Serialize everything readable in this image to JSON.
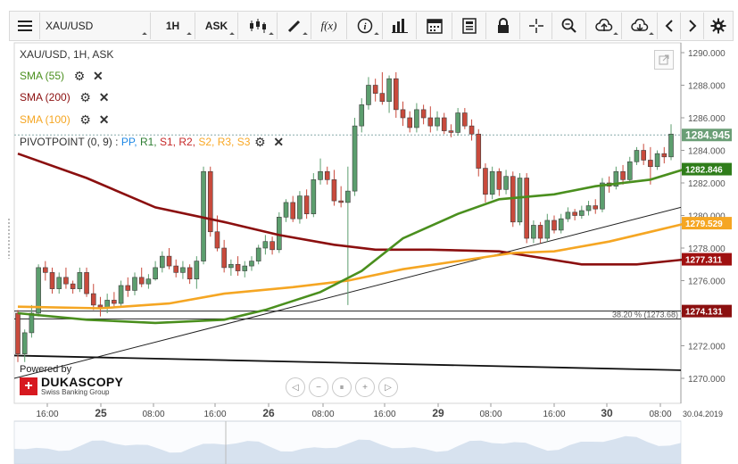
{
  "toolbar": {
    "menu_icon": "hamburger-icon",
    "symbol": "XAU/USD",
    "timeframe": "1H",
    "side": "ASK",
    "icons": [
      "candles-icon",
      "draw-pen-icon",
      "function-icon",
      "info-icon",
      "volume-bars-icon",
      "calendar-icon",
      "report-icon",
      "lock-icon",
      "crosshair-icon",
      "zoom-icon",
      "upload-icon",
      "download-icon",
      "arrow-left-icon",
      "arrow-right-icon",
      "gear-icon"
    ],
    "function_label": "f(x)"
  },
  "legend": {
    "title": "XAU/USD, 1H, ASK",
    "sma55": "SMA (55)",
    "sma200": "SMA (200)",
    "sma100": "SMA (100)",
    "pivot_prefix": "PIVOTPOINT (0, 9)",
    "pivot_sep": " : ",
    "pivot_items": [
      {
        "label": "PP",
        "color": "#1e88e5"
      },
      {
        "label": "R1",
        "color": "#2e7d32"
      },
      {
        "label": "S1",
        "color": "#c62828"
      },
      {
        "label": "R2",
        "color": "#c62828"
      },
      {
        "label": "S2",
        "color": "#f9a825"
      },
      {
        "label": "R3",
        "color": "#f9a825"
      },
      {
        "label": "S3",
        "color": "#f9a825"
      }
    ]
  },
  "branding": {
    "powered_by": "Powered by",
    "logo_name": "DUKASCOPY",
    "logo_sub": "Swiss Banking Group"
  },
  "colors": {
    "bull": "#5c9e6e",
    "bear": "#c94a3c",
    "sma55": "#4a8f1e",
    "sma200": "#8b0f0f",
    "sma100": "#f5a623",
    "last_price_bg": "#6a9e76",
    "sma55_bg": "#2f7d1a",
    "sma100_bg": "#f5a623",
    "sma200_bg": "#a01010",
    "fib_bg": "#8b1010"
  },
  "chart_data": {
    "type": "candlestick",
    "ylim": [
      1269.0,
      1291.0
    ],
    "y_ticks": [
      "1290.000",
      "1288.000",
      "1286.000",
      "1284.000",
      "1282.000",
      "1280.000",
      "1278.000",
      "1276.000",
      "1274.000",
      "1272.000",
      "1270.000"
    ],
    "x_tick_labels": [
      "16:00",
      "25",
      "08:00",
      "16:00",
      "26",
      "08:00",
      "16:00",
      "29",
      "08:00",
      "16:00",
      "30",
      "08:00"
    ],
    "date_corner": "30.04.2019",
    "candles": [
      [
        1274.0,
        1274.2,
        1271.0,
        1271.5
      ],
      [
        1271.5,
        1273.0,
        1271.0,
        1272.8
      ],
      [
        1272.8,
        1274.5,
        1272.5,
        1274.0
      ],
      [
        1274.0,
        1277.0,
        1273.8,
        1276.8
      ],
      [
        1276.8,
        1277.2,
        1276.0,
        1276.5
      ],
      [
        1276.5,
        1276.8,
        1275.2,
        1275.5
      ],
      [
        1275.5,
        1276.5,
        1275.2,
        1276.2
      ],
      [
        1276.2,
        1276.8,
        1275.5,
        1275.8
      ],
      [
        1275.8,
        1276.0,
        1275.2,
        1275.5
      ],
      [
        1275.5,
        1276.8,
        1275.3,
        1276.5
      ],
      [
        1276.5,
        1276.8,
        1275.0,
        1275.2
      ],
      [
        1275.2,
        1275.8,
        1274.2,
        1274.5
      ],
      [
        1274.5,
        1275.0,
        1273.8,
        1274.3
      ],
      [
        1274.3,
        1275.2,
        1274.0,
        1274.8
      ],
      [
        1274.8,
        1275.3,
        1274.4,
        1274.6
      ],
      [
        1274.6,
        1276.0,
        1274.4,
        1275.7
      ],
      [
        1275.7,
        1276.2,
        1275.0,
        1275.4
      ],
      [
        1275.4,
        1276.5,
        1275.1,
        1276.2
      ],
      [
        1276.2,
        1276.8,
        1275.6,
        1275.8
      ],
      [
        1275.8,
        1276.4,
        1275.5,
        1276.1
      ],
      [
        1276.1,
        1277.2,
        1276.0,
        1276.8
      ],
      [
        1276.8,
        1277.8,
        1276.5,
        1277.5
      ],
      [
        1277.5,
        1278.0,
        1276.7,
        1276.9
      ],
      [
        1276.9,
        1277.3,
        1276.2,
        1276.5
      ],
      [
        1276.5,
        1277.2,
        1276.1,
        1276.8
      ],
      [
        1276.8,
        1277.0,
        1275.8,
        1276.1
      ],
      [
        1276.1,
        1277.5,
        1275.5,
        1277.2
      ],
      [
        1277.2,
        1283.0,
        1277.0,
        1282.7
      ],
      [
        1282.7,
        1283.0,
        1278.7,
        1279.0
      ],
      [
        1279.0,
        1280.0,
        1277.8,
        1278.0
      ],
      [
        1278.0,
        1278.5,
        1276.5,
        1276.8
      ],
      [
        1276.8,
        1277.3,
        1276.3,
        1277.0
      ],
      [
        1277.0,
        1277.5,
        1276.3,
        1276.6
      ],
      [
        1276.6,
        1277.2,
        1276.2,
        1276.9
      ],
      [
        1276.9,
        1277.5,
        1276.6,
        1277.2
      ],
      [
        1277.2,
        1278.2,
        1277.0,
        1278.0
      ],
      [
        1278.0,
        1278.8,
        1277.6,
        1278.4
      ],
      [
        1278.4,
        1278.7,
        1277.6,
        1277.9
      ],
      [
        1277.9,
        1280.2,
        1277.7,
        1279.9
      ],
      [
        1279.9,
        1281.0,
        1279.6,
        1280.8
      ],
      [
        1280.8,
        1281.2,
        1279.6,
        1279.8
      ],
      [
        1279.8,
        1281.5,
        1279.5,
        1281.2
      ],
      [
        1281.2,
        1281.6,
        1279.8,
        1280.1
      ],
      [
        1280.1,
        1282.6,
        1279.9,
        1282.2
      ],
      [
        1282.2,
        1283.5,
        1281.9,
        1282.7
      ],
      [
        1282.7,
        1283.0,
        1281.9,
        1282.2
      ],
      [
        1282.2,
        1282.8,
        1280.6,
        1280.9
      ],
      [
        1280.9,
        1281.8,
        1280.5,
        1280.8
      ],
      [
        1280.8,
        1283.0,
        1274.5,
        1281.5
      ],
      [
        1281.5,
        1286.0,
        1281.2,
        1285.5
      ],
      [
        1285.5,
        1287.2,
        1285.1,
        1286.8
      ],
      [
        1286.8,
        1288.5,
        1286.5,
        1288.0
      ],
      [
        1288.0,
        1288.4,
        1287.0,
        1287.5
      ],
      [
        1287.5,
        1288.8,
        1286.8,
        1287.0
      ],
      [
        1287.0,
        1288.6,
        1286.3,
        1288.4
      ],
      [
        1288.4,
        1288.8,
        1286.0,
        1286.5
      ],
      [
        1286.5,
        1287.0,
        1285.5,
        1286.0
      ],
      [
        1286.0,
        1286.4,
        1285.1,
        1285.4
      ],
      [
        1285.4,
        1286.9,
        1285.1,
        1286.5
      ],
      [
        1286.5,
        1286.8,
        1285.6,
        1286.0
      ],
      [
        1286.0,
        1286.7,
        1285.1,
        1285.5
      ],
      [
        1285.5,
        1286.4,
        1285.2,
        1286.0
      ],
      [
        1286.0,
        1286.3,
        1285.0,
        1285.2
      ],
      [
        1285.2,
        1285.6,
        1284.8,
        1285.1
      ],
      [
        1285.1,
        1286.6,
        1284.9,
        1286.3
      ],
      [
        1286.3,
        1286.6,
        1285.3,
        1285.5
      ],
      [
        1285.5,
        1285.9,
        1284.6,
        1285.0
      ],
      [
        1285.0,
        1285.3,
        1282.4,
        1282.9
      ],
      [
        1282.9,
        1283.2,
        1280.8,
        1281.3
      ],
      [
        1281.3,
        1283.0,
        1281.0,
        1282.7
      ],
      [
        1282.7,
        1282.9,
        1281.2,
        1281.6
      ],
      [
        1281.6,
        1282.8,
        1281.3,
        1282.4
      ],
      [
        1282.4,
        1282.7,
        1279.3,
        1279.6
      ],
      [
        1279.6,
        1282.6,
        1279.4,
        1282.3
      ],
      [
        1282.3,
        1282.6,
        1278.3,
        1278.6
      ],
      [
        1278.6,
        1279.7,
        1278.3,
        1279.4
      ],
      [
        1279.4,
        1279.6,
        1278.3,
        1278.6
      ],
      [
        1278.6,
        1280.1,
        1278.4,
        1279.7
      ],
      [
        1279.7,
        1280.0,
        1278.9,
        1279.1
      ],
      [
        1279.1,
        1280.1,
        1278.9,
        1279.8
      ],
      [
        1279.8,
        1280.5,
        1279.6,
        1280.2
      ],
      [
        1280.2,
        1280.4,
        1279.7,
        1280.0
      ],
      [
        1280.0,
        1280.6,
        1279.8,
        1280.3
      ],
      [
        1280.3,
        1280.9,
        1280.0,
        1280.6
      ],
      [
        1280.6,
        1281.0,
        1280.1,
        1280.4
      ],
      [
        1280.4,
        1282.3,
        1280.2,
        1282.0
      ],
      [
        1282.0,
        1282.4,
        1281.4,
        1281.8
      ],
      [
        1281.8,
        1283.0,
        1281.6,
        1282.7
      ],
      [
        1282.7,
        1283.1,
        1281.9,
        1282.2
      ],
      [
        1282.2,
        1283.6,
        1282.0,
        1283.3
      ],
      [
        1283.3,
        1284.2,
        1283.1,
        1284.0
      ],
      [
        1284.0,
        1284.4,
        1283.1,
        1283.4
      ],
      [
        1283.4,
        1284.2,
        1281.9,
        1283.0
      ],
      [
        1283.0,
        1284.0,
        1282.8,
        1283.8
      ],
      [
        1283.8,
        1284.2,
        1283.2,
        1283.6
      ],
      [
        1283.6,
        1285.6,
        1283.4,
        1285.0
      ]
    ],
    "sma55": [
      [
        0,
        1274.0
      ],
      [
        10,
        1273.6
      ],
      [
        20,
        1273.4
      ],
      [
        30,
        1273.6
      ],
      [
        36,
        1274.2
      ],
      [
        44,
        1275.3
      ],
      [
        50,
        1276.6
      ],
      [
        56,
        1278.6
      ],
      [
        64,
        1280.1
      ],
      [
        70,
        1281.0
      ],
      [
        78,
        1281.3
      ],
      [
        84,
        1281.8
      ],
      [
        92,
        1282.2
      ],
      [
        97,
        1282.85
      ]
    ],
    "sma200": [
      [
        0,
        1283.8
      ],
      [
        10,
        1282.3
      ],
      [
        20,
        1280.5
      ],
      [
        30,
        1279.6
      ],
      [
        38,
        1278.8
      ],
      [
        46,
        1278.2
      ],
      [
        52,
        1277.9
      ],
      [
        60,
        1277.9
      ],
      [
        70,
        1277.8
      ],
      [
        76,
        1277.4
      ],
      [
        82,
        1277.0
      ],
      [
        90,
        1277.0
      ],
      [
        97,
        1277.3
      ]
    ],
    "sma100": [
      [
        0,
        1274.4
      ],
      [
        12,
        1274.3
      ],
      [
        22,
        1274.6
      ],
      [
        30,
        1275.2
      ],
      [
        40,
        1275.6
      ],
      [
        48,
        1276.0
      ],
      [
        56,
        1276.7
      ],
      [
        64,
        1277.2
      ],
      [
        72,
        1277.7
      ],
      [
        78,
        1277.8
      ],
      [
        86,
        1278.4
      ],
      [
        92,
        1279.0
      ],
      [
        97,
        1279.5
      ]
    ],
    "trendline": [
      [
        0,
        1270.0
      ],
      [
        97,
        1280.5
      ]
    ],
    "horizontal_lines": [
      1274.13,
      1273.65
    ],
    "down_line": [
      [
        0,
        1271.4
      ],
      [
        97,
        1270.5
      ]
    ],
    "pivot_level": 1284.945,
    "fib_label": "38.20 % (1273.68)",
    "price_tags": [
      {
        "value": 1284.945,
        "label": "1284.945",
        "kind": "last"
      },
      {
        "value": 1282.846,
        "label": "1282.846",
        "kind": "sma55"
      },
      {
        "value": 1279.529,
        "label": "1279.529",
        "kind": "sma100"
      },
      {
        "value": 1277.311,
        "label": "1277.311",
        "kind": "sma200"
      },
      {
        "value": 1274.131,
        "label": "1274.131",
        "kind": "fib"
      }
    ]
  }
}
